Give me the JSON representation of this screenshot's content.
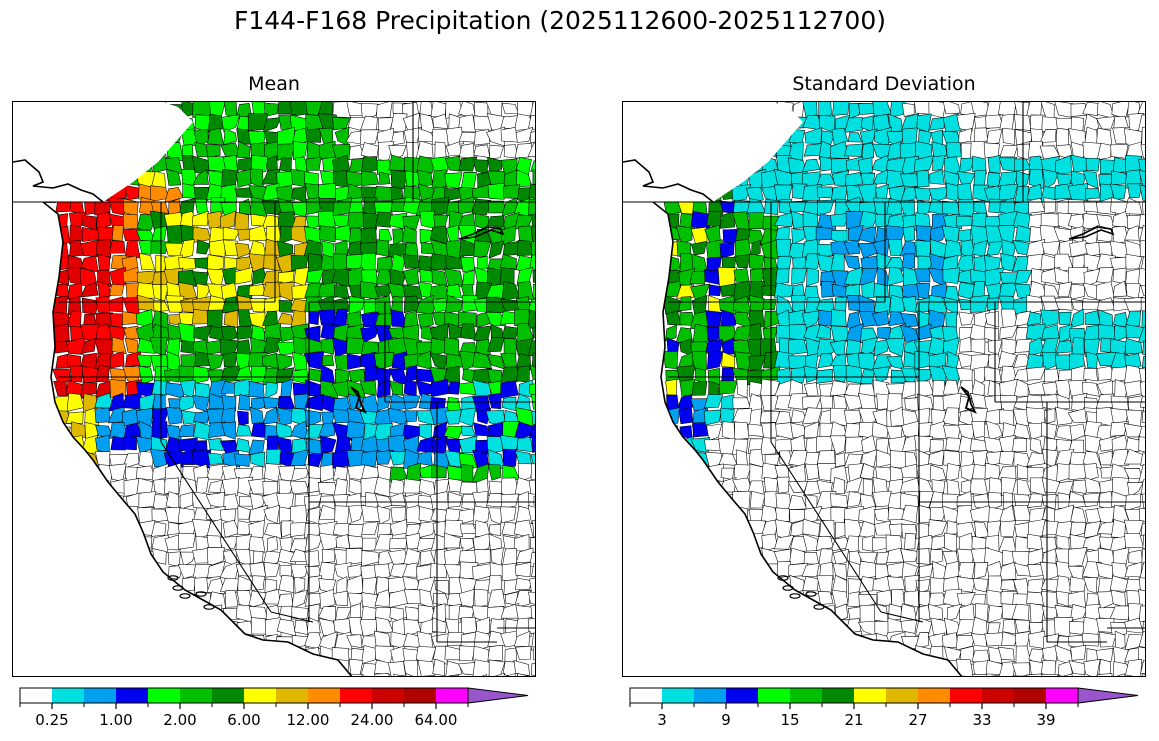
{
  "figure": {
    "title": "F144-F168 Precipitation (2025112600-2025112700)"
  },
  "panels": [
    {
      "title": "Mean",
      "colorbar": {
        "tick_labels": [
          "0.25",
          "1.00",
          "2.00",
          "6.00",
          "12.00",
          "24.00",
          "64.00"
        ],
        "tick_bins": [
          1,
          3,
          5,
          7,
          9,
          11,
          13
        ]
      }
    },
    {
      "title": "Standard Deviation",
      "colorbar": {
        "tick_labels": [
          "3",
          "9",
          "15",
          "21",
          "27",
          "33",
          "39"
        ],
        "tick_bins": [
          1,
          3,
          5,
          7,
          9,
          11,
          13
        ]
      }
    }
  ],
  "colorbar_colors": [
    "#ffffff",
    "#00e0e0",
    "#009ff0",
    "#0000f0",
    "#00ff00",
    "#00c000",
    "#008800",
    "#ffff00",
    "#e0b800",
    "#ff8c00",
    "#ff0000",
    "#cc0000",
    "#b00000",
    "#ff00ff",
    "#9955cc"
  ],
  "mean_field_colors": {
    "very_high": "#e00000",
    "high": "#ff0000",
    "orange": "#ff8c00",
    "yellow": "#ffff00",
    "gold": "#e0b800",
    "dark_green": "#008800",
    "green": "#00c000",
    "lime": "#00ff00",
    "blue": "#0000f0",
    "light_blue": "#009ff0",
    "cyan": "#00e0e0"
  },
  "sd_field_colors": {
    "dark_green": "#008800",
    "green": "#00c000",
    "yellow": "#ffff00",
    "orange": "#ff8c00",
    "blue": "#0000f0",
    "light_blue": "#009ff0",
    "cyan": "#00e0e0"
  }
}
